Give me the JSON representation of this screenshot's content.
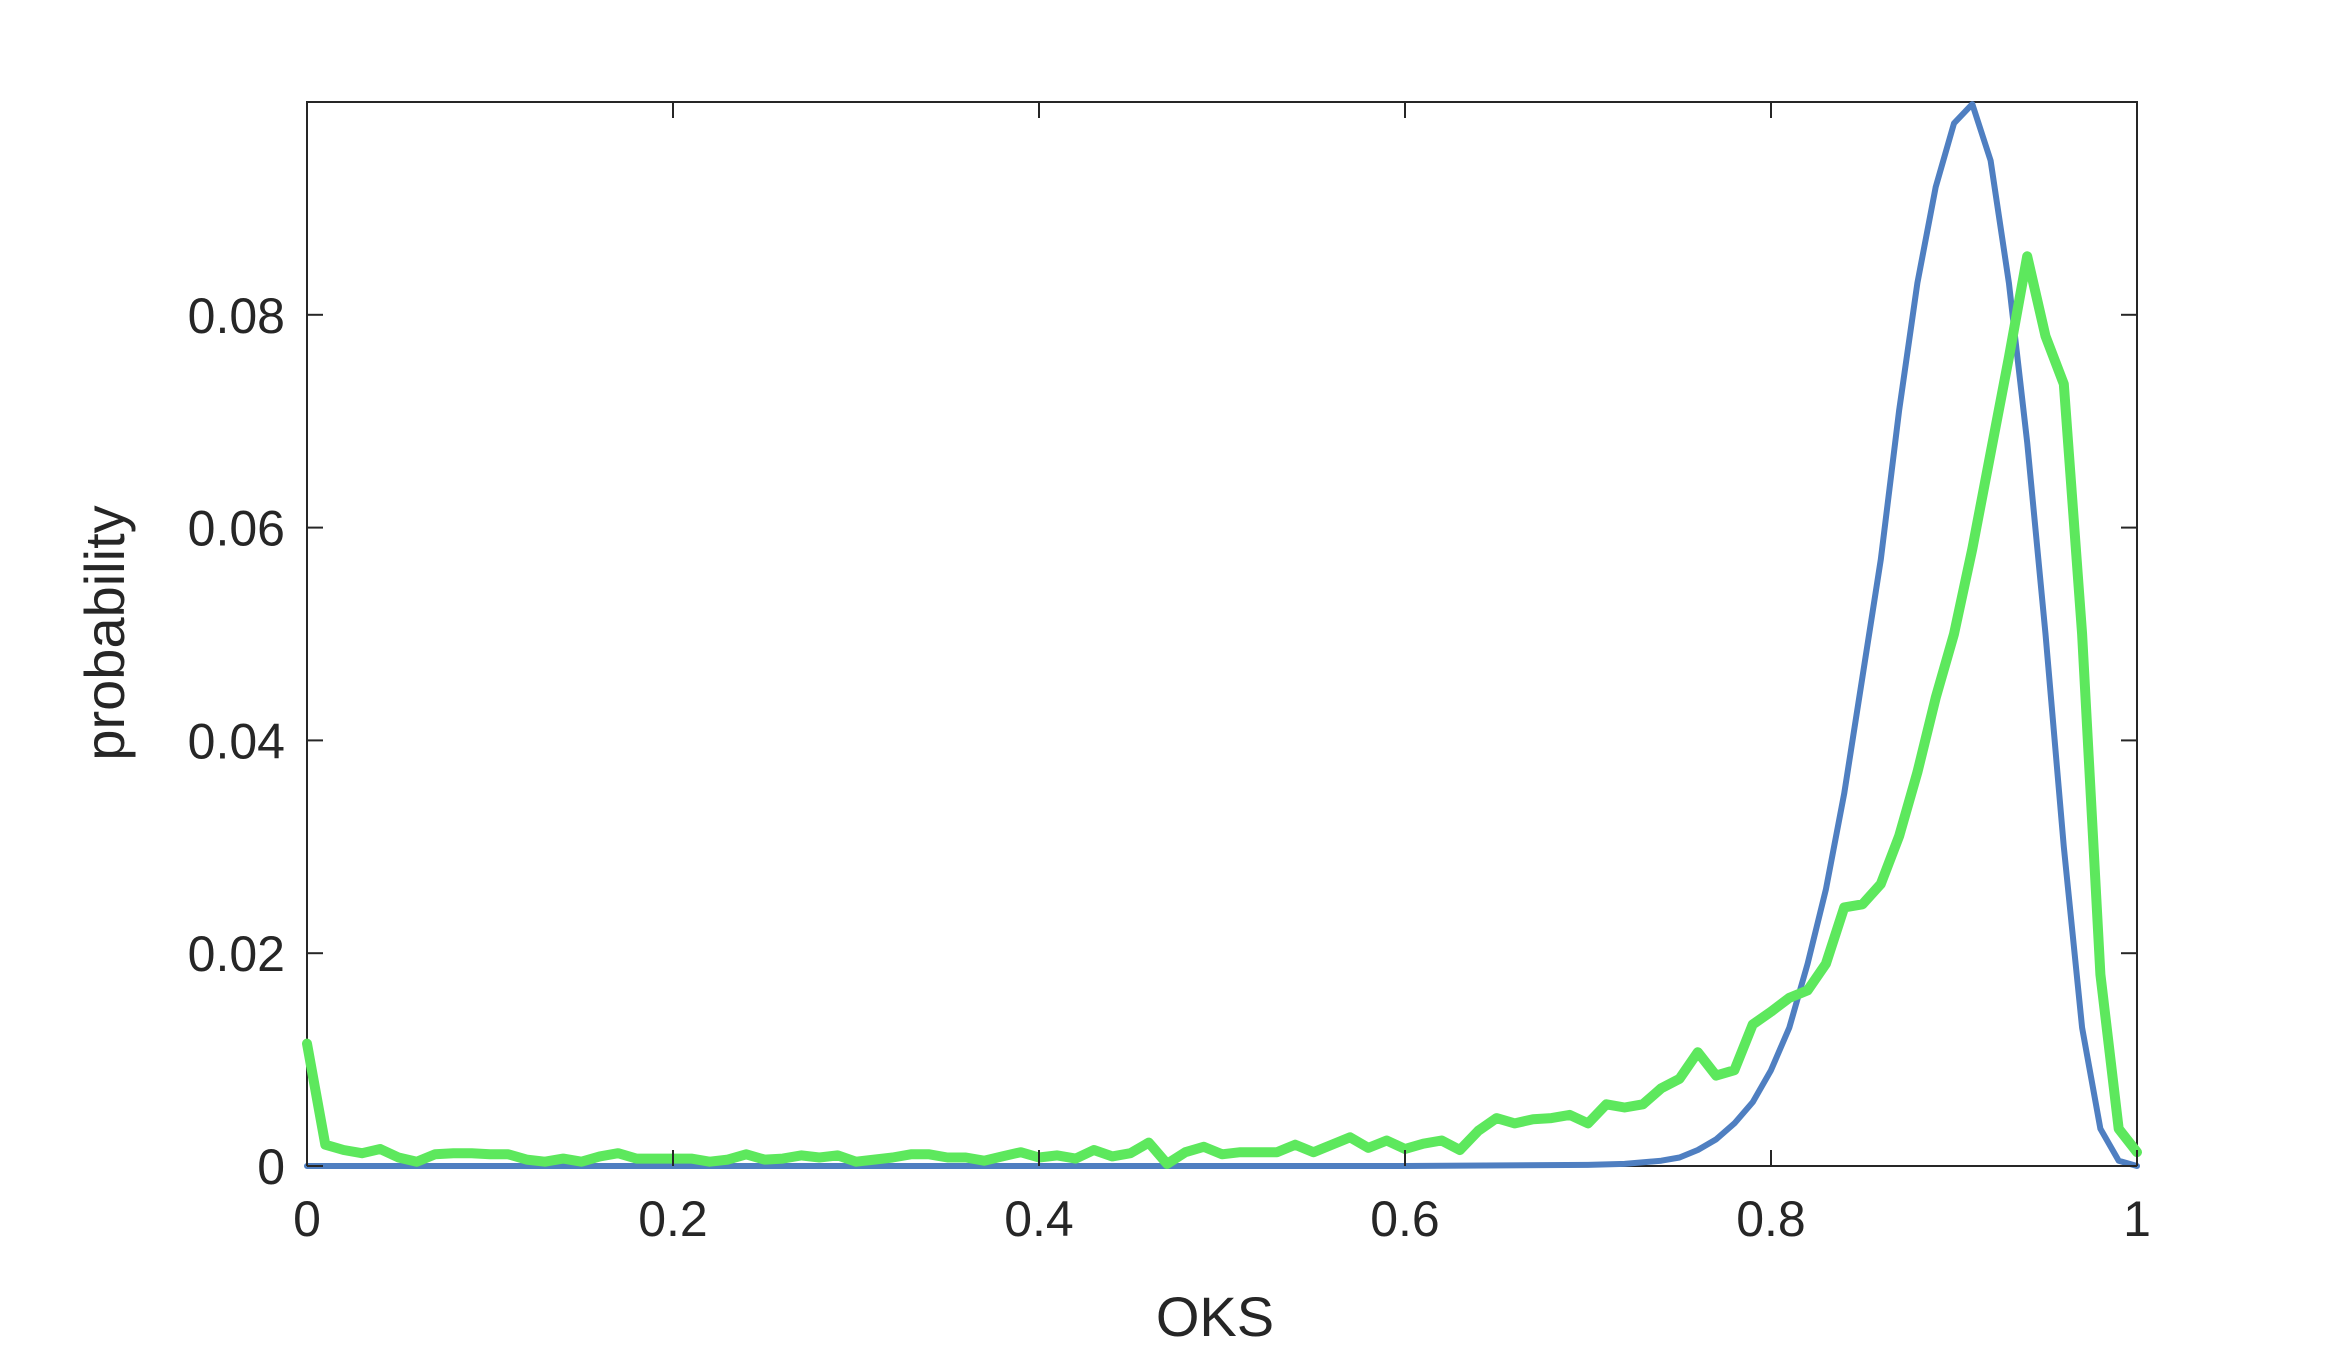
{
  "chart_data": {
    "type": "line",
    "title": "",
    "xlabel": "OKS",
    "ylabel": "probability",
    "xlim": [
      0,
      1
    ],
    "ylim": [
      0,
      0.1
    ],
    "xticks": [
      0,
      0.2,
      0.4,
      0.6,
      0.8,
      1
    ],
    "xtick_labels": [
      "0",
      "0.2",
      "0.4",
      "0.6",
      "0.8",
      "1"
    ],
    "yticks": [
      0,
      0.02,
      0.04,
      0.06,
      0.08
    ],
    "ytick_labels": [
      "0",
      "0.02",
      "0.04",
      "0.06",
      "0.08"
    ],
    "grid": false,
    "legend": "none",
    "series": [
      {
        "color": "#4f7fc1",
        "points": [
          [
            0,
            0
          ],
          [
            0.6,
            0
          ],
          [
            0.7,
            0.0001
          ],
          [
            0.72,
            0.0002
          ],
          [
            0.74,
            0.0005
          ],
          [
            0.75,
            0.0008
          ],
          [
            0.76,
            0.0015
          ],
          [
            0.77,
            0.0025
          ],
          [
            0.78,
            0.004
          ],
          [
            0.79,
            0.006
          ],
          [
            0.8,
            0.009
          ],
          [
            0.81,
            0.013
          ],
          [
            0.82,
            0.019
          ],
          [
            0.83,
            0.026
          ],
          [
            0.84,
            0.035
          ],
          [
            0.85,
            0.046
          ],
          [
            0.86,
            0.057
          ],
          [
            0.87,
            0.071
          ],
          [
            0.88,
            0.083
          ],
          [
            0.89,
            0.092
          ],
          [
            0.9,
            0.098
          ],
          [
            0.91,
            0.0998
          ],
          [
            0.92,
            0.0945
          ],
          [
            0.93,
            0.083
          ],
          [
            0.94,
            0.068
          ],
          [
            0.95,
            0.05
          ],
          [
            0.96,
            0.03
          ],
          [
            0.97,
            0.013
          ],
          [
            0.98,
            0.0035
          ],
          [
            0.99,
            0.0005
          ],
          [
            1.0,
            0
          ]
        ]
      },
      {
        "color": "#5de85d",
        "points": [
          [
            0,
            0.0115
          ],
          [
            0.01,
            0.002
          ],
          [
            0.02,
            0.0015
          ],
          [
            0.03,
            0.0012
          ],
          [
            0.04,
            0.0016
          ],
          [
            0.05,
            0.0008
          ],
          [
            0.06,
            0.0004
          ],
          [
            0.07,
            0.0011
          ],
          [
            0.08,
            0.0012
          ],
          [
            0.09,
            0.0012
          ],
          [
            0.1,
            0.0011
          ],
          [
            0.11,
            0.0011
          ],
          [
            0.12,
            0.0006
          ],
          [
            0.13,
            0.0004
          ],
          [
            0.14,
            0.0007
          ],
          [
            0.15,
            0.0004
          ],
          [
            0.16,
            0.0009
          ],
          [
            0.17,
            0.0012
          ],
          [
            0.18,
            0.0007
          ],
          [
            0.19,
            0.0007
          ],
          [
            0.2,
            0.0007
          ],
          [
            0.21,
            0.0007
          ],
          [
            0.22,
            0.0004
          ],
          [
            0.23,
            0.0006
          ],
          [
            0.24,
            0.0011
          ],
          [
            0.25,
            0.0006
          ],
          [
            0.26,
            0.0007
          ],
          [
            0.27,
            0.001
          ],
          [
            0.28,
            0.0008
          ],
          [
            0.29,
            0.001
          ],
          [
            0.3,
            0.0004
          ],
          [
            0.31,
            0.0006
          ],
          [
            0.32,
            0.0008
          ],
          [
            0.33,
            0.0011
          ],
          [
            0.34,
            0.0011
          ],
          [
            0.35,
            0.0008
          ],
          [
            0.36,
            0.0008
          ],
          [
            0.37,
            0.0005
          ],
          [
            0.38,
            0.0009
          ],
          [
            0.39,
            0.0013
          ],
          [
            0.4,
            0.0008
          ],
          [
            0.41,
            0.001
          ],
          [
            0.42,
            0.0007
          ],
          [
            0.43,
            0.0015
          ],
          [
            0.44,
            0.0009
          ],
          [
            0.45,
            0.0012
          ],
          [
            0.46,
            0.0022
          ],
          [
            0.47,
            0.0002
          ],
          [
            0.48,
            0.0013
          ],
          [
            0.49,
            0.0018
          ],
          [
            0.5,
            0.0011
          ],
          [
            0.51,
            0.0013
          ],
          [
            0.52,
            0.0013
          ],
          [
            0.53,
            0.0013
          ],
          [
            0.54,
            0.002
          ],
          [
            0.55,
            0.0013
          ],
          [
            0.56,
            0.002
          ],
          [
            0.57,
            0.0027
          ],
          [
            0.58,
            0.0017
          ],
          [
            0.59,
            0.0024
          ],
          [
            0.6,
            0.0016
          ],
          [
            0.61,
            0.0021
          ],
          [
            0.62,
            0.0024
          ],
          [
            0.63,
            0.0015
          ],
          [
            0.64,
            0.0033
          ],
          [
            0.65,
            0.0045
          ],
          [
            0.66,
            0.004
          ],
          [
            0.67,
            0.0044
          ],
          [
            0.68,
            0.0045
          ],
          [
            0.69,
            0.0048
          ],
          [
            0.7,
            0.004
          ],
          [
            0.71,
            0.0058
          ],
          [
            0.72,
            0.0055
          ],
          [
            0.73,
            0.0058
          ],
          [
            0.74,
            0.0073
          ],
          [
            0.75,
            0.0082
          ],
          [
            0.76,
            0.0107
          ],
          [
            0.77,
            0.0085
          ],
          [
            0.78,
            0.009
          ],
          [
            0.79,
            0.0133
          ],
          [
            0.8,
            0.0145
          ],
          [
            0.81,
            0.0158
          ],
          [
            0.82,
            0.0165
          ],
          [
            0.83,
            0.019
          ],
          [
            0.84,
            0.0243
          ],
          [
            0.85,
            0.0246
          ],
          [
            0.86,
            0.0265
          ],
          [
            0.87,
            0.031
          ],
          [
            0.88,
            0.037
          ],
          [
            0.89,
            0.044
          ],
          [
            0.9,
            0.05
          ],
          [
            0.91,
            0.058
          ],
          [
            0.92,
            0.067
          ],
          [
            0.93,
            0.076
          ],
          [
            0.94,
            0.0855
          ],
          [
            0.95,
            0.078
          ],
          [
            0.96,
            0.0735
          ],
          [
            0.97,
            0.05
          ],
          [
            0.98,
            0.018
          ],
          [
            0.99,
            0.0035
          ],
          [
            1.0,
            0.0013
          ]
        ]
      }
    ]
  }
}
